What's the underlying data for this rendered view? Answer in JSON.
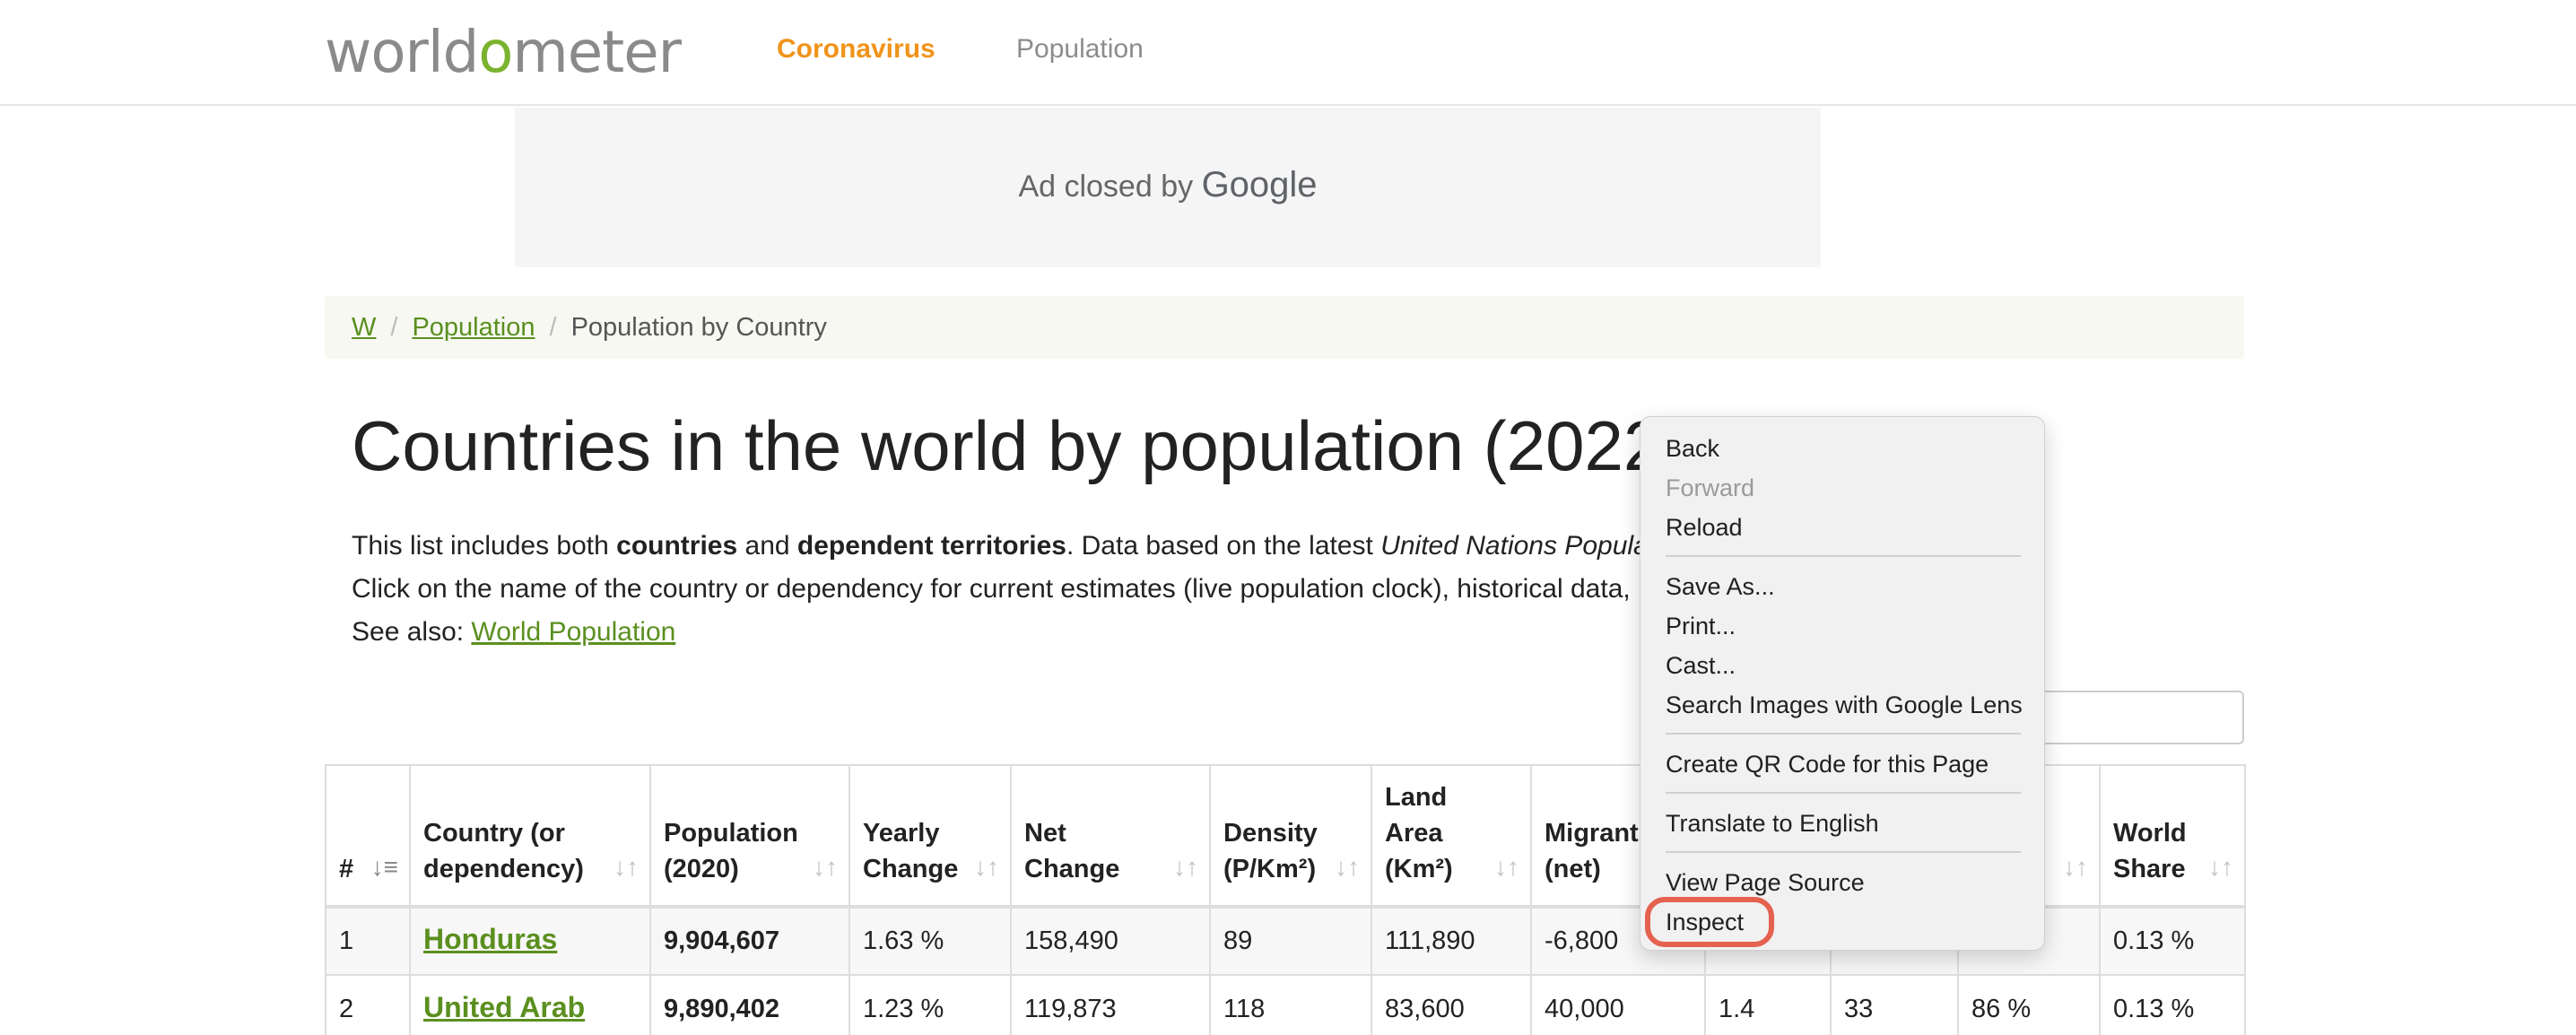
{
  "header": {
    "logo": {
      "before": "world",
      "accent": "o",
      "after": "meter"
    },
    "nav": [
      "Coronavirus",
      "Population"
    ],
    "accent_color": "#f0931a"
  },
  "ad": {
    "text": "Ad closed by",
    "brand": "Google"
  },
  "breadcrumb": {
    "items": [
      "W",
      "Population"
    ],
    "current": "Population by Country"
  },
  "page": {
    "title": "Countries in the world by population (2022)",
    "intro1": {
      "a": "This list includes both ",
      "b": "countries",
      "c": " and ",
      "d": "dependent territories",
      "e": ". Data based on the latest ",
      "f": "United Nations Popula"
    },
    "intro2": "Click on the name of the country or dependency for current estimates (live population clock), historical data, ",
    "intro3": {
      "label": "See also: ",
      "link": "World Population"
    }
  },
  "table": {
    "columns": [
      {
        "line1": "#",
        "line2": ""
      },
      {
        "line1": "Country (or",
        "line2": "dependency)"
      },
      {
        "line1": "Population",
        "line2": "(2020)"
      },
      {
        "line1": "Yearly",
        "line2": "Change"
      },
      {
        "line1": "Net",
        "line2": "Change"
      },
      {
        "line1": "Density",
        "line2": "(P/Km²)"
      },
      {
        "line0": "Land",
        "line1": "Area",
        "line2": "(Km²)"
      },
      {
        "line1": "Migrants",
        "line2": "(net)"
      },
      {
        "line1": "",
        "line2": ""
      },
      {
        "line1": "",
        "line2": ""
      },
      {
        "line1": "",
        "line2": ""
      },
      {
        "line1": "World",
        "line2": "Share"
      }
    ],
    "rows": [
      {
        "rank": "1",
        "country": "Honduras",
        "population": "9,904,607",
        "yearly": "1.63 %",
        "net": "158,490",
        "density": "89",
        "area": "111,890",
        "migrants": "-6,800",
        "c9": "",
        "c10": "",
        "c11": "",
        "share": "0.13 %"
      },
      {
        "rank": "2",
        "country": "United Arab",
        "population": "9,890,402",
        "yearly": "1.23 %",
        "net": "119,873",
        "density": "118",
        "area": "83,600",
        "migrants": "40,000",
        "c9": "1.4",
        "c10": "33",
        "c11": "86 %",
        "share": "0.13 %"
      }
    ]
  },
  "context_menu": {
    "items": [
      "Back",
      "Forward",
      "Reload",
      "Save As...",
      "Print...",
      "Cast...",
      "Search Images with Google Lens",
      "Create QR Code for this Page",
      "Translate to English",
      "View Page Source",
      "Inspect"
    ],
    "highlight_color": "#e4624f"
  }
}
